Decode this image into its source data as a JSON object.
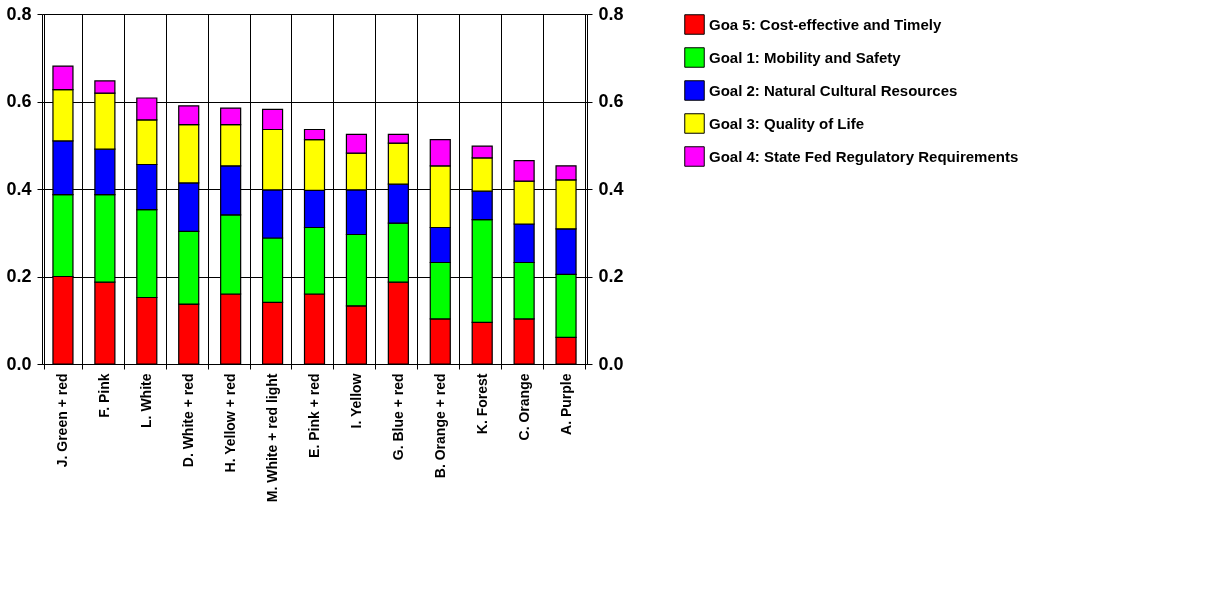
{
  "chart_data": {
    "type": "bar",
    "stacked": true,
    "categories": [
      "J. Green + red",
      "F. Pink",
      "L. White",
      "D. White + red",
      "H. Yellow + red",
      "M. White + red light",
      "E. Pink + red",
      "I. Yellow",
      "G. Blue + red",
      "B. Orange + red",
      "K. Forest",
      "C. Orange",
      "A. Purple"
    ],
    "series": [
      {
        "name": "Goa 5: Cost-effective and Timely",
        "color": "#ff0000",
        "values": [
          0.2,
          0.187,
          0.152,
          0.137,
          0.16,
          0.141,
          0.16,
          0.133,
          0.187,
          0.103,
          0.095,
          0.103,
          0.061
        ]
      },
      {
        "name": "Goal 1: Mobility and Safety",
        "color": "#00ff00",
        "values": [
          0.187,
          0.2,
          0.201,
          0.166,
          0.181,
          0.147,
          0.152,
          0.163,
          0.135,
          0.129,
          0.235,
          0.129,
          0.144
        ]
      },
      {
        "name": "Goal 2: Natural Cultural Resources",
        "color": "#0000ff",
        "values": [
          0.123,
          0.104,
          0.103,
          0.111,
          0.112,
          0.11,
          0.085,
          0.102,
          0.089,
          0.08,
          0.065,
          0.088,
          0.104
        ]
      },
      {
        "name": "Goal 3: Quality of Life",
        "color": "#ffff00",
        "values": [
          0.117,
          0.128,
          0.102,
          0.133,
          0.094,
          0.138,
          0.116,
          0.084,
          0.094,
          0.141,
          0.076,
          0.098,
          0.112
        ]
      },
      {
        "name": "Goal 4: State Fed Regulatory Requirements",
        "color": "#ff00ff",
        "values": [
          0.054,
          0.028,
          0.05,
          0.043,
          0.038,
          0.046,
          0.023,
          0.043,
          0.02,
          0.06,
          0.027,
          0.047,
          0.032
        ]
      }
    ],
    "ylim": [
      0,
      0.8
    ],
    "yticks": [
      {
        "value": 0,
        "label": "0.0"
      },
      {
        "value": 0.2,
        "label": "0.2"
      },
      {
        "value": 0.4,
        "label": "0.4"
      },
      {
        "value": 0.6,
        "label": "0.6"
      },
      {
        "value": 0.8,
        "label": "0.8"
      }
    ],
    "y2lim": [
      0,
      0.8
    ],
    "y2ticks": [
      {
        "value": 0,
        "label": "0.0"
      },
      {
        "value": 0.2,
        "label": "0.2"
      },
      {
        "value": 0.4,
        "label": "0.4"
      },
      {
        "value": 0.6,
        "label": "0.6"
      },
      {
        "value": 0.8,
        "label": "0.8"
      }
    ],
    "grid": true,
    "legend": "right"
  }
}
